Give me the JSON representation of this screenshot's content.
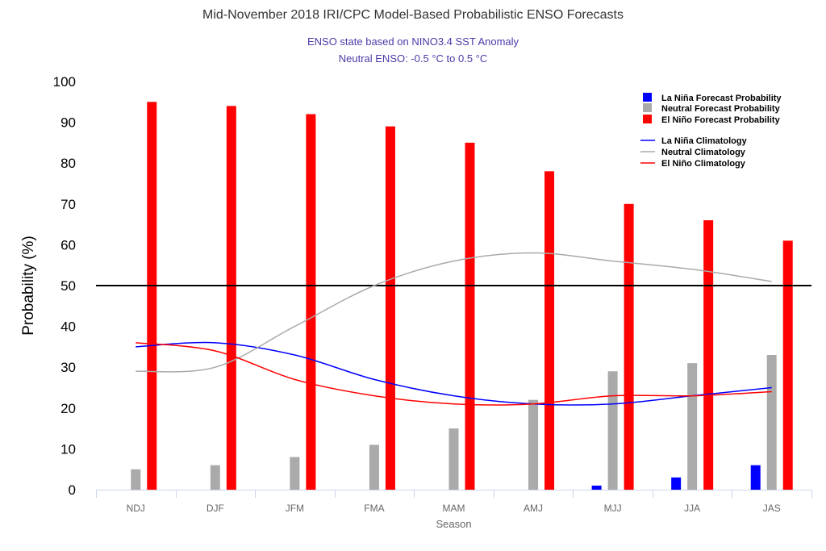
{
  "chart_data": {
    "type": "bar",
    "title": "Mid-November 2018 IRI/CPC Model-Based Probabilistic ENSO Forecasts",
    "subtitle_lines": [
      "ENSO state based on NINO3.4 SST Anomaly",
      "Neutral ENSO: -0.5 °C to 0.5 °C"
    ],
    "xlabel": "Season",
    "ylabel": "Probability (%)",
    "ylim": [
      0,
      100
    ],
    "yticks": [
      0,
      10,
      20,
      30,
      40,
      50,
      60,
      70,
      80,
      90,
      100
    ],
    "categories": [
      "NDJ",
      "DJF",
      "JFM",
      "FMA",
      "MAM",
      "AMJ",
      "MJJ",
      "JJA",
      "JAS"
    ],
    "reference_line": 50,
    "series": [
      {
        "name": "La Niña Forecast Probability",
        "kind": "bar",
        "color": "#0000ff",
        "values": [
          0,
          0,
          0,
          0,
          0,
          0,
          1,
          3,
          6
        ]
      },
      {
        "name": "Neutral Forecast Probability",
        "kind": "bar",
        "color": "#aaaaaa",
        "values": [
          5,
          6,
          8,
          11,
          15,
          22,
          29,
          31,
          33
        ]
      },
      {
        "name": "El Niño Forecast Probability",
        "kind": "bar",
        "color": "#ff0000",
        "values": [
          95,
          94,
          92,
          89,
          85,
          78,
          70,
          66,
          61
        ]
      },
      {
        "name": "La Niña Climatology",
        "kind": "line",
        "color": "#0000ff",
        "values": [
          35,
          36,
          33,
          27,
          23,
          21,
          21,
          23,
          25
        ]
      },
      {
        "name": "Neutral Climatology",
        "kind": "line",
        "color": "#aaaaaa",
        "values": [
          29,
          30,
          40,
          50,
          56,
          58,
          56,
          54,
          51
        ]
      },
      {
        "name": "El Niño Climatology",
        "kind": "line",
        "color": "#ff0000",
        "values": [
          36,
          34,
          27,
          23,
          21,
          21,
          23,
          23,
          24
        ]
      }
    ]
  }
}
